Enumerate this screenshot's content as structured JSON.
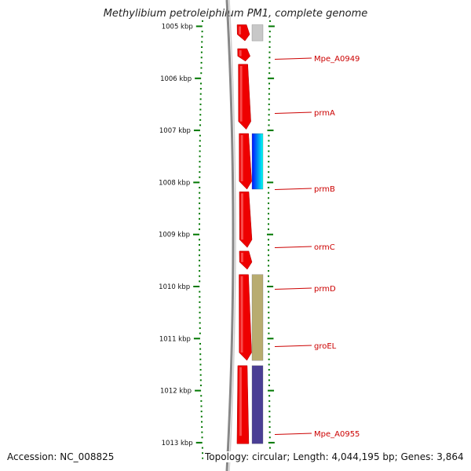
{
  "title": "Methylibium petroleiphilum PM1, complete genome",
  "footer": {
    "accession": "Accession: NC_008825",
    "topology": "Topology: circular; Length: 4,044,195 bp; Genes: 3,864"
  },
  "axis": {
    "unit": "kbp",
    "ticks": [
      {
        "value": 1005,
        "label": "1005 kbp"
      },
      {
        "value": 1006,
        "label": "1006 kbp"
      },
      {
        "value": 1007,
        "label": "1007 kbp"
      },
      {
        "value": 1008,
        "label": "1008 kbp"
      },
      {
        "value": 1009,
        "label": "1009 kbp"
      },
      {
        "value": 1010,
        "label": "1010 kbp"
      },
      {
        "value": 1011,
        "label": "1011 kbp"
      },
      {
        "value": 1012,
        "label": "1012 kbp"
      },
      {
        "value": 1013,
        "label": "1013 kbp"
      }
    ]
  },
  "gene_labels": [
    "Mpe_A0949",
    "prmA",
    "prmB",
    "ormC",
    "prmD",
    "groEL",
    "Mpe_A0955"
  ],
  "colors": {
    "gene": "#ee0000",
    "tick": "#007700",
    "backbone": "#888888",
    "label": "#cc0000",
    "protein_grey": "#c8c8c8",
    "protein_blue_start": "#0010ff",
    "protein_blue_end": "#00ffee",
    "protein_olive": "#b8ac70",
    "protein_purple": "#4a3e94"
  },
  "chart_data": {
    "type": "genome_map",
    "title": "Methylibium petroleiphilum PM1, complete genome",
    "axis_unit": "kbp",
    "axis_range_kbp": [
      1004.97,
      1013.02
    ],
    "tick_labels": [
      "1005 kbp",
      "1006 kbp",
      "1007 kbp",
      "1008 kbp",
      "1009 kbp",
      "1010 kbp",
      "1011 kbp",
      "1012 kbp",
      "1013 kbp"
    ],
    "genes": [
      {
        "name": "",
        "start": 1004.97,
        "end": 1005.28
      },
      {
        "name": "Mpe_A0949",
        "start": 1005.43,
        "end": 1005.67
      },
      {
        "name": "prmA",
        "start": 1005.73,
        "end": 1006.98
      },
      {
        "name": "prmB",
        "start": 1007.06,
        "end": 1008.13
      },
      {
        "name": "ormC",
        "start": 1008.18,
        "end": 1009.25
      },
      {
        "name": "prmD",
        "start": 1009.32,
        "end": 1009.67
      },
      {
        "name": "groEL",
        "start": 1009.77,
        "end": 1011.42
      },
      {
        "name": "Mpe_A0955",
        "start": 1011.52,
        "end": 1013.02
      }
    ],
    "protein_tracks": [
      {
        "gene_index": 0,
        "color": "grey"
      },
      {
        "gene_index": 3,
        "color": "blue-cyan"
      },
      {
        "gene_index": 6,
        "color": "olive"
      },
      {
        "gene_index": 7,
        "color": "purple"
      }
    ],
    "genome": {
      "accession": "NC_008825",
      "topology": "circular",
      "length_bp": 4044195,
      "genes": 3864
    }
  }
}
